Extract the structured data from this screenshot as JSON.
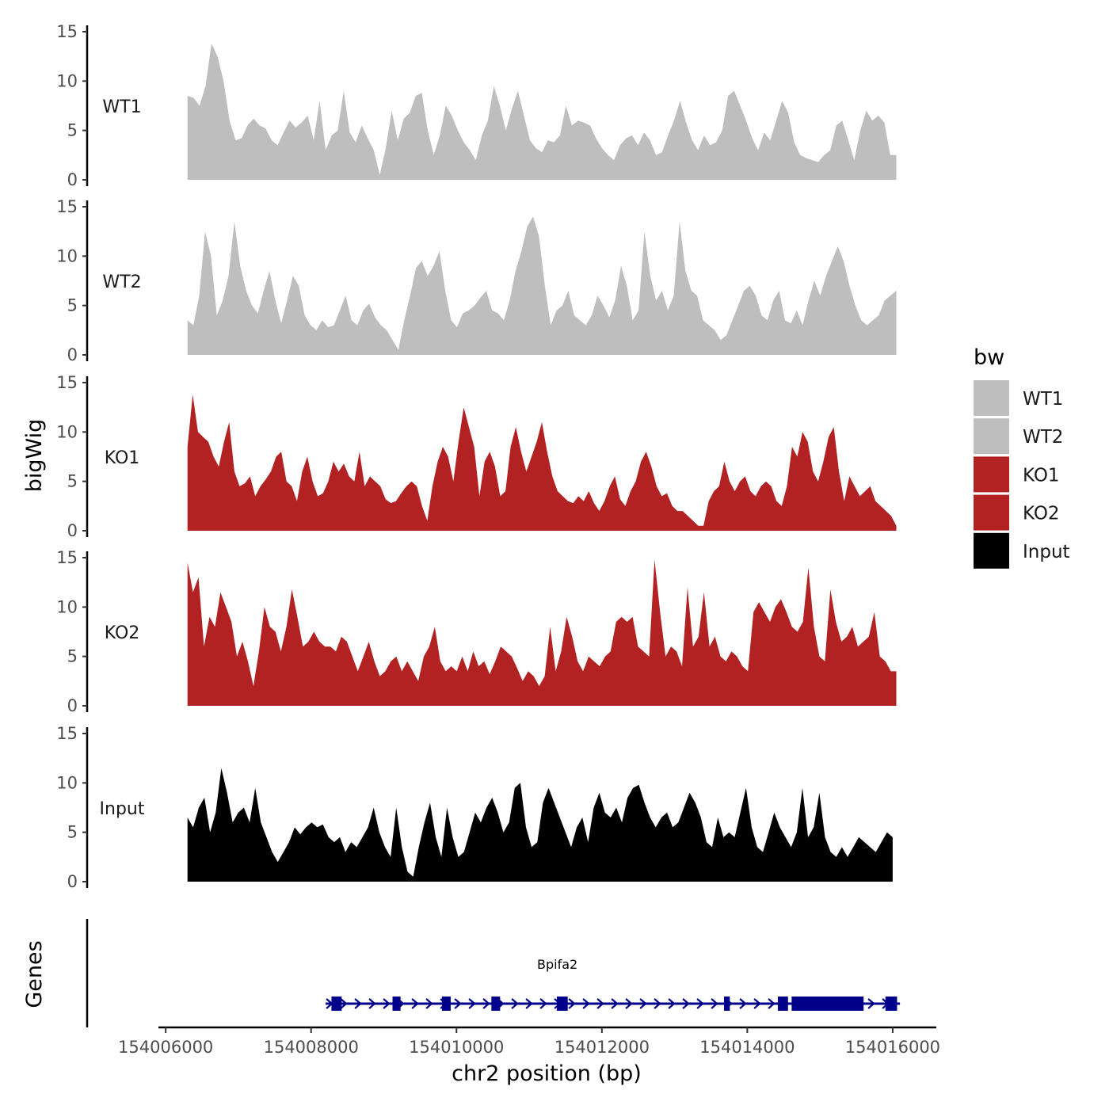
{
  "chart_data": {
    "type": "area",
    "x_label": "chr2 position (bp)",
    "y_label": "bigWig",
    "genes_label": "Genes",
    "xlim": [
      154005900,
      154016600
    ],
    "x_ticks": [
      154006000,
      154008000,
      154010000,
      154012000,
      154014000,
      154016000
    ],
    "x_tick_labels": [
      "154006000",
      "154008000",
      "154010000",
      "154012000",
      "154014000",
      "154016000"
    ],
    "ylim": [
      0,
      15
    ],
    "y_ticks": [
      0,
      5,
      10,
      15
    ],
    "y_tick_labels": [
      "0",
      "5",
      "10",
      "15"
    ],
    "legend": {
      "title": "bw",
      "items": [
        {
          "label": "WT1",
          "color": "#bebebe"
        },
        {
          "label": "WT2",
          "color": "#bebebe"
        },
        {
          "label": "KO1",
          "color": "#b22222"
        },
        {
          "label": "KO2",
          "color": "#b22222"
        },
        {
          "label": "Input",
          "color": "#000000"
        }
      ]
    },
    "series": [
      {
        "name": "WT1",
        "color": "#bebebe",
        "x_start": 154006300,
        "x_end": 154016050,
        "values": [
          8.5,
          8.3,
          7.5,
          9.5,
          13.8,
          12.5,
          10.0,
          6.0,
          4.0,
          4.2,
          5.5,
          6.2,
          5.5,
          5.2,
          4.0,
          3.5,
          4.8,
          6.0,
          5.3,
          5.8,
          6.5,
          4.0,
          8.0,
          3.0,
          4.5,
          5.0,
          9.0,
          4.8,
          3.8,
          5.5,
          4.2,
          3.0,
          0.5,
          3.2,
          7.0,
          4.0,
          6.2,
          6.8,
          8.5,
          8.8,
          5.0,
          2.5,
          4.5,
          7.5,
          6.5,
          5.0,
          3.8,
          3.0,
          2.0,
          4.5,
          6.0,
          9.5,
          7.5,
          5.0,
          7.2,
          9.0,
          6.5,
          4.0,
          3.2,
          2.8,
          4.0,
          3.8,
          4.5,
          7.5,
          5.5,
          6.0,
          5.8,
          5.5,
          4.2,
          3.2,
          2.5,
          2.0,
          3.5,
          4.2,
          4.5,
          3.5,
          4.8,
          4.0,
          2.5,
          2.8,
          4.5,
          6.0,
          8.0,
          5.8,
          4.0,
          3.0,
          4.5,
          3.5,
          3.8,
          5.0,
          8.5,
          9.0,
          7.5,
          6.0,
          4.2,
          3.0,
          4.8,
          4.0,
          6.0,
          8.0,
          6.8,
          3.8,
          2.5,
          2.2,
          2.0,
          1.8,
          2.5,
          3.0,
          5.5,
          6.0,
          4.0,
          2.0,
          5.0,
          7.0,
          6.0,
          6.5,
          5.8,
          2.5,
          2.5
        ]
      },
      {
        "name": "WT2",
        "color": "#bebebe",
        "x_start": 154006300,
        "x_end": 154016050,
        "values": [
          3.5,
          3.0,
          6.0,
          12.5,
          10.0,
          4.0,
          5.5,
          8.0,
          13.5,
          9.0,
          6.5,
          5.0,
          4.2,
          6.5,
          8.5,
          5.5,
          3.2,
          5.5,
          8.0,
          7.0,
          4.0,
          3.0,
          2.5,
          3.5,
          2.8,
          3.0,
          4.5,
          6.0,
          3.5,
          3.0,
          4.5,
          5.2,
          3.8,
          3.0,
          2.5,
          1.5,
          0.5,
          3.5,
          6.0,
          8.8,
          9.5,
          8.0,
          9.0,
          10.5,
          6.5,
          3.5,
          2.8,
          4.2,
          4.5,
          5.0,
          5.8,
          6.5,
          4.5,
          4.2,
          3.5,
          5.5,
          8.5,
          10.5,
          13.0,
          14.0,
          12.0,
          7.0,
          3.0,
          4.5,
          5.0,
          6.5,
          4.0,
          3.5,
          3.0,
          4.0,
          6.0,
          5.0,
          3.8,
          5.5,
          9.0,
          7.0,
          3.5,
          4.5,
          12.5,
          8.0,
          5.5,
          6.5,
          4.5,
          6.0,
          13.5,
          8.5,
          6.5,
          6.0,
          3.5,
          3.0,
          2.5,
          1.5,
          2.0,
          3.5,
          5.0,
          6.5,
          7.0,
          6.0,
          4.0,
          3.5,
          5.5,
          6.5,
          3.5,
          3.2,
          4.5,
          3.0,
          5.5,
          7.5,
          6.0,
          8.0,
          9.5,
          11.0,
          9.5,
          7.0,
          5.0,
          3.5,
          3.0,
          3.5,
          4.0,
          5.5,
          6.0,
          6.5
        ]
      },
      {
        "name": "KO1",
        "color": "#b22222",
        "x_start": 154006300,
        "x_end": 154016050,
        "values": [
          8.5,
          13.8,
          10.0,
          9.5,
          9.0,
          7.5,
          6.5,
          9.0,
          11.0,
          6.0,
          4.5,
          4.8,
          5.5,
          3.5,
          4.5,
          5.2,
          6.0,
          7.5,
          8.0,
          5.0,
          4.5,
          3.0,
          6.0,
          7.5,
          5.0,
          3.5,
          3.8,
          5.0,
          7.0,
          6.0,
          6.8,
          5.5,
          5.0,
          8.0,
          4.5,
          5.5,
          5.0,
          4.5,
          3.2,
          2.8,
          3.0,
          3.8,
          4.5,
          5.0,
          4.5,
          2.5,
          1.0,
          4.5,
          7.0,
          8.5,
          7.5,
          5.0,
          9.0,
          12.5,
          10.5,
          8.5,
          3.5,
          7.0,
          8.0,
          6.5,
          3.5,
          4.0,
          8.5,
          10.5,
          8.0,
          6.0,
          7.5,
          9.0,
          11.0,
          8.0,
          5.5,
          4.0,
          3.5,
          3.0,
          2.8,
          3.5,
          3.0,
          4.0,
          2.8,
          2.0,
          3.0,
          4.5,
          5.5,
          3.2,
          2.5,
          4.0,
          5.0,
          7.0,
          8.0,
          6.5,
          4.5,
          3.5,
          3.8,
          2.5,
          2.0,
          2.0,
          1.5,
          1.0,
          0.5,
          0.5,
          3.0,
          4.0,
          4.5,
          7.0,
          5.0,
          4.0,
          5.0,
          5.5,
          4.0,
          3.5,
          4.5,
          5.0,
          4.5,
          3.0,
          2.5,
          4.5,
          8.5,
          7.5,
          10.0,
          9.0,
          6.0,
          5.0,
          7.0,
          9.5,
          10.5,
          6.0,
          3.0,
          5.5,
          4.5,
          3.5,
          4.0,
          4.5,
          3.0,
          2.5,
          2.0,
          1.5,
          0.5
        ]
      },
      {
        "name": "KO2",
        "color": "#b22222",
        "x_start": 154006300,
        "x_end": 154016050,
        "values": [
          14.5,
          11.5,
          13.0,
          6.0,
          9.0,
          8.0,
          11.5,
          10.0,
          8.5,
          5.0,
          6.5,
          4.5,
          2.0,
          5.5,
          10.0,
          8.0,
          7.5,
          5.5,
          8.0,
          11.8,
          9.0,
          6.0,
          6.5,
          7.5,
          6.5,
          6.0,
          6.0,
          5.5,
          7.0,
          6.5,
          5.0,
          3.5,
          5.0,
          6.5,
          4.5,
          3.0,
          3.5,
          4.5,
          5.0,
          3.5,
          4.5,
          3.5,
          2.5,
          5.0,
          6.0,
          8.0,
          4.5,
          3.5,
          4.0,
          3.5,
          5.0,
          3.5,
          5.5,
          4.0,
          4.5,
          3.2,
          4.5,
          6.0,
          5.5,
          5.0,
          3.8,
          2.5,
          3.5,
          3.0,
          2.0,
          3.0,
          8.0,
          3.5,
          5.5,
          9.0,
          7.0,
          4.5,
          3.5,
          5.0,
          4.5,
          4.0,
          5.0,
          5.5,
          8.5,
          9.0,
          8.5,
          9.0,
          6.0,
          5.5,
          5.0,
          14.8,
          9.5,
          5.0,
          6.0,
          5.5,
          4.0,
          12.0,
          6.0,
          7.0,
          11.5,
          6.0,
          7.0,
          5.0,
          4.5,
          5.5,
          5.0,
          4.0,
          3.5,
          9.5,
          10.5,
          9.5,
          8.5,
          10.0,
          10.8,
          9.5,
          8.0,
          7.5,
          8.5,
          14.0,
          8.0,
          5.0,
          4.5,
          11.8,
          8.5,
          6.5,
          7.0,
          8.0,
          6.0,
          6.5,
          7.0,
          9.5,
          5.0,
          4.5,
          3.5,
          3.5
        ]
      },
      {
        "name": "Input",
        "color": "#000000",
        "x_start": 154006300,
        "x_end": 154016000,
        "values": [
          6.5,
          5.5,
          7.5,
          8.5,
          5.0,
          7.0,
          11.5,
          9.0,
          6.0,
          7.0,
          7.5,
          6.0,
          9.5,
          6.0,
          4.5,
          3.0,
          2.0,
          3.0,
          4.0,
          5.5,
          4.8,
          5.5,
          6.0,
          5.5,
          5.8,
          4.5,
          4.0,
          4.5,
          3.0,
          4.0,
          3.5,
          4.5,
          5.5,
          7.5,
          5.0,
          3.5,
          2.5,
          7.5,
          3.5,
          1.0,
          0.5,
          3.5,
          6.0,
          8.0,
          4.5,
          2.5,
          7.5,
          4.5,
          2.5,
          3.0,
          5.0,
          7.0,
          6.0,
          7.5,
          8.5,
          7.0,
          5.0,
          6.0,
          9.5,
          10.0,
          5.5,
          3.5,
          4.0,
          8.0,
          9.5,
          8.0,
          6.5,
          5.0,
          3.5,
          5.5,
          6.5,
          4.0,
          7.5,
          9.0,
          7.0,
          6.5,
          7.5,
          6.0,
          8.5,
          9.5,
          9.8,
          8.0,
          6.5,
          5.5,
          6.5,
          7.0,
          5.5,
          6.0,
          7.5,
          9.0,
          8.0,
          6.5,
          4.0,
          3.5,
          6.5,
          4.5,
          5.0,
          4.5,
          7.0,
          9.5,
          5.5,
          3.5,
          3.0,
          5.0,
          7.0,
          5.5,
          4.5,
          3.5,
          5.0,
          9.5,
          4.5,
          5.5,
          9.0,
          4.5,
          3.0,
          2.5,
          3.5,
          2.5,
          3.5,
          4.5,
          4.0,
          3.5,
          3.0,
          4.0,
          5.0,
          4.5
        ]
      }
    ],
    "genes": {
      "name": "Bpifa2",
      "color": "#00008b",
      "start": 154008200,
      "end": 154016100,
      "exons": [
        [
          154008280,
          154008420
        ],
        [
          154009120,
          154009230
        ],
        [
          154009800,
          154009920
        ],
        [
          154010480,
          154010600
        ],
        [
          154011380,
          154011530
        ],
        [
          154013680,
          154013760
        ],
        [
          154014420,
          154014560
        ],
        [
          154014610,
          154015600
        ],
        [
          154015900,
          154016060
        ]
      ]
    }
  }
}
